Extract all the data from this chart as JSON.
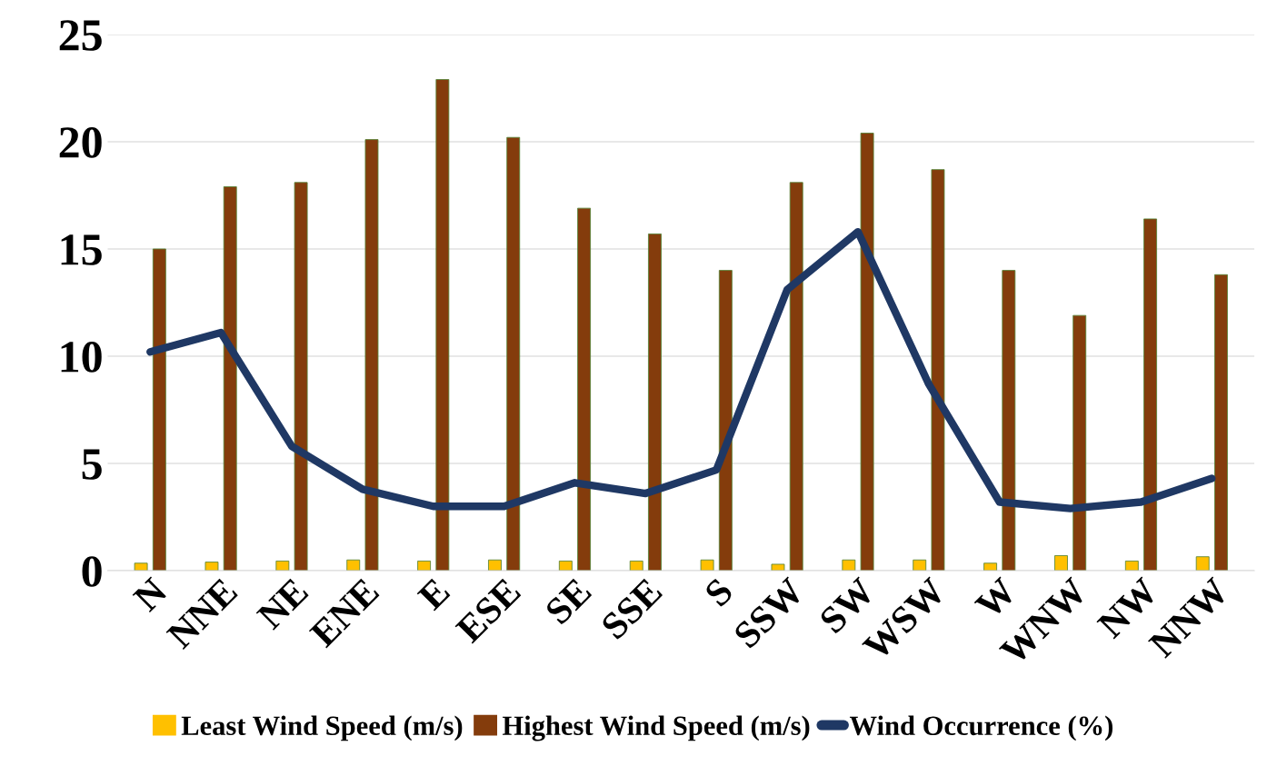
{
  "chart_data": {
    "type": "bar",
    "categories": [
      "N",
      "NNE",
      "NE",
      "ENE",
      "E",
      "ESE",
      "SE",
      "SSE",
      "S",
      "SSW",
      "SW",
      "WSW",
      "W",
      "WNW",
      "NW",
      "NNW"
    ],
    "series": [
      {
        "name": "Least Wind Speed (m/s)",
        "color": "#ffc000",
        "values": [
          0.35,
          0.4,
          0.45,
          0.5,
          0.45,
          0.5,
          0.45,
          0.45,
          0.5,
          0.3,
          0.5,
          0.5,
          0.35,
          0.7,
          0.45,
          0.65
        ]
      },
      {
        "name": "Highest Wind Speed (m/s)",
        "color": "#843c0c",
        "values": [
          15.0,
          17.9,
          18.1,
          20.1,
          22.9,
          20.2,
          16.9,
          15.7,
          14.0,
          18.1,
          20.4,
          18.7,
          14.0,
          11.9,
          16.4,
          13.8
        ]
      },
      {
        "name": "Wind Occurrence (%)",
        "type": "line",
        "color": "#1f3864",
        "values": [
          10.2,
          11.1,
          5.8,
          3.8,
          3.0,
          3.0,
          4.1,
          3.6,
          4.7,
          13.1,
          15.8,
          8.7,
          3.2,
          2.9,
          3.2,
          4.3
        ]
      }
    ],
    "ylim": [
      0,
      25
    ],
    "yticks": [
      0,
      5,
      10,
      15,
      20,
      25
    ],
    "grid": "y",
    "legend": "bottom",
    "marker": "none",
    "line_style": "solid"
  }
}
